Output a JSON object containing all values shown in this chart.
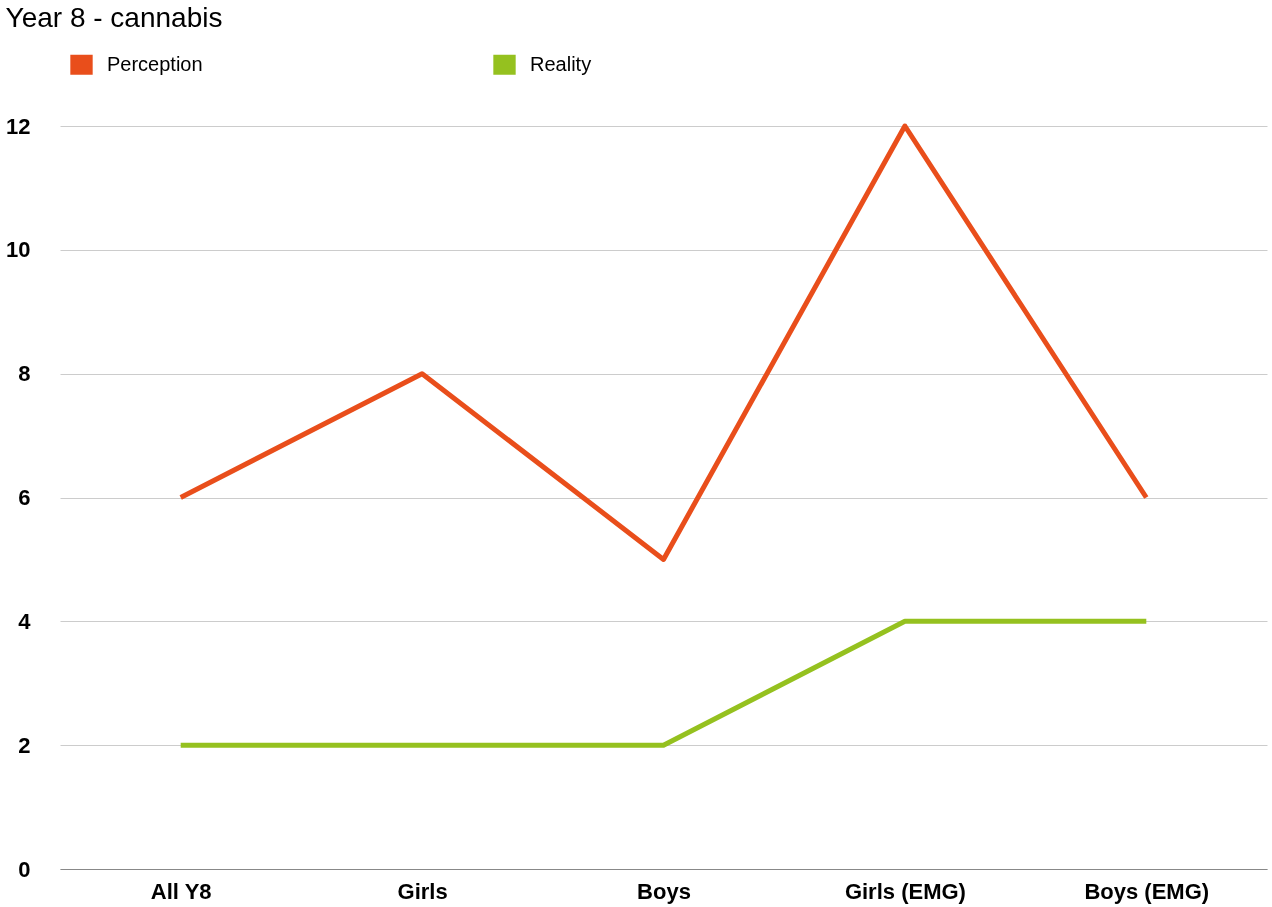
{
  "chart_data": {
    "type": "line",
    "title": "Year 8 - cannabis",
    "categories": [
      "All Y8",
      "Girls",
      "Boys",
      "Girls (EMG)",
      "Boys (EMG)"
    ],
    "series": [
      {
        "name": "Perception",
        "color": "#e94e1b",
        "values": [
          6,
          8,
          5,
          12,
          6
        ]
      },
      {
        "name": "Reality",
        "color": "#95c11f",
        "values": [
          2,
          2,
          2,
          4,
          4
        ]
      }
    ],
    "ylim": [
      0,
      12
    ],
    "yticks": [
      0,
      2,
      4,
      6,
      8,
      10,
      12
    ],
    "grid": "y",
    "legend": "top",
    "marker": "none",
    "line_style": "solid"
  }
}
